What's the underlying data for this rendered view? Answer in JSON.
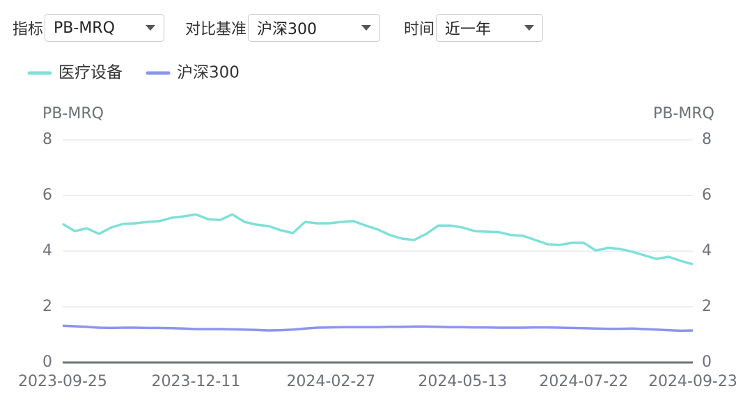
{
  "controls": [
    {
      "label": "指标",
      "value": "PB-MRQ"
    },
    {
      "label": "对比基准",
      "value": "沪深300"
    },
    {
      "label": "时间",
      "value": "近一年"
    }
  ],
  "chart_data": {
    "type": "line",
    "ylabel": "PB-MRQ",
    "y2label": "PB-MRQ",
    "x": [
      "2023-09-25",
      "2023-10-02",
      "2023-10-09",
      "2023-10-16",
      "2023-10-23",
      "2023-10-30",
      "2023-11-06",
      "2023-11-13",
      "2023-11-20",
      "2023-11-27",
      "2023-12-04",
      "2023-12-11",
      "2023-12-18",
      "2023-12-25",
      "2024-01-01",
      "2024-01-08",
      "2024-01-15",
      "2024-01-22",
      "2024-01-29",
      "2024-02-05",
      "2024-02-12",
      "2024-02-19",
      "2024-02-26",
      "2024-03-04",
      "2024-03-11",
      "2024-03-18",
      "2024-03-25",
      "2024-04-01",
      "2024-04-08",
      "2024-04-15",
      "2024-04-22",
      "2024-04-29",
      "2024-05-06",
      "2024-05-13",
      "2024-05-20",
      "2024-05-27",
      "2024-06-03",
      "2024-06-10",
      "2024-06-17",
      "2024-06-24",
      "2024-07-01",
      "2024-07-08",
      "2024-07-15",
      "2024-07-22",
      "2024-07-29",
      "2024-08-05",
      "2024-08-12",
      "2024-08-19",
      "2024-08-26",
      "2024-09-02",
      "2024-09-09",
      "2024-09-16",
      "2024-09-23"
    ],
    "xlim": [
      "2023-09-25",
      "2024-09-23"
    ],
    "xticks": [
      "2023-09-25",
      "2023-12-11",
      "2024-02-27",
      "2024-05-13",
      "2024-07-22",
      "2024-09-23"
    ],
    "series": [
      {
        "name": "医疗设备",
        "color": "#7fe0d8",
        "values": [
          4.98,
          4.72,
          4.82,
          4.62,
          4.85,
          4.98,
          5.0,
          5.05,
          5.08,
          5.2,
          5.25,
          5.32,
          5.15,
          5.12,
          5.32,
          5.05,
          4.95,
          4.9,
          4.75,
          4.65,
          5.05,
          5.0,
          5.0,
          5.05,
          5.08,
          4.92,
          4.78,
          4.58,
          4.45,
          4.4,
          4.62,
          4.92,
          4.92,
          4.85,
          4.72,
          4.7,
          4.68,
          4.58,
          4.55,
          4.4,
          4.25,
          4.22,
          4.3,
          4.3,
          4.02,
          4.12,
          4.08,
          3.98,
          3.85,
          3.72,
          3.8,
          3.65,
          3.53
        ]
      },
      {
        "name": "沪深300",
        "color": "#8c94f0",
        "values": [
          1.32,
          1.3,
          1.28,
          1.25,
          1.24,
          1.25,
          1.25,
          1.24,
          1.24,
          1.23,
          1.22,
          1.2,
          1.2,
          1.2,
          1.19,
          1.18,
          1.17,
          1.15,
          1.16,
          1.18,
          1.22,
          1.25,
          1.26,
          1.27,
          1.27,
          1.27,
          1.27,
          1.28,
          1.28,
          1.29,
          1.29,
          1.28,
          1.27,
          1.27,
          1.26,
          1.26,
          1.25,
          1.25,
          1.25,
          1.26,
          1.26,
          1.25,
          1.24,
          1.23,
          1.22,
          1.21,
          1.21,
          1.22,
          1.2,
          1.18,
          1.16,
          1.14,
          1.15
        ]
      }
    ],
    "ylim": [
      0,
      8
    ],
    "yticks": [
      0,
      2,
      4,
      6,
      8
    ],
    "y2lim": [
      0,
      8
    ],
    "y2ticks": [
      0,
      2,
      4,
      6,
      8
    ],
    "grid": true
  }
}
